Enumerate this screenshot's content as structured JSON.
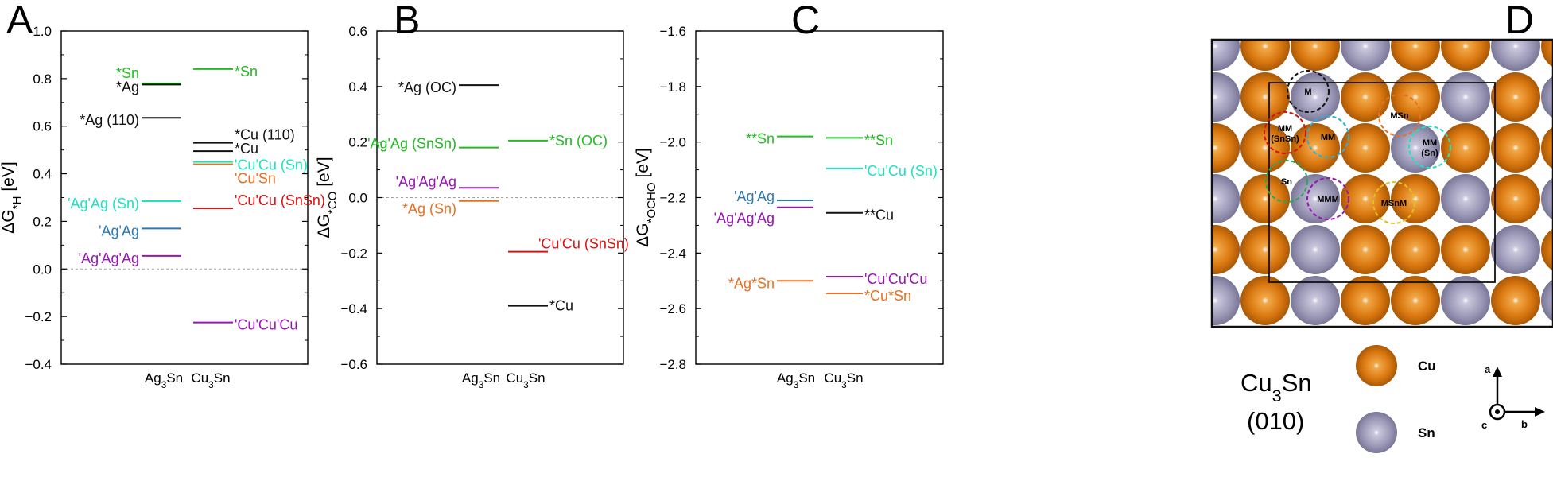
{
  "panels": [
    "A",
    "B",
    "C",
    "D"
  ],
  "chart_data": [
    {
      "type": "level_diagram",
      "title": "",
      "panel": "A",
      "ylabel": "ΔG*H [eV]",
      "ylim": [
        -0.4,
        1.0
      ],
      "yticks": [
        "-0.4",
        "-0.2",
        "0.0",
        "0.2",
        "0.4",
        "0.6",
        "0.8",
        "1.0"
      ],
      "categories": [
        "Ag3Sn",
        "Cu3Sn"
      ],
      "zero_line": true,
      "levels": [
        {
          "label": "*Sn",
          "value": 0.78,
          "category": 0,
          "color": "#22bb22"
        },
        {
          "label": "*Ag",
          "value": 0.775,
          "category": 0,
          "color": "#111111"
        },
        {
          "label": "*Ag (110)",
          "value": 0.635,
          "category": 0,
          "color": "#111111"
        },
        {
          "label": "'Ag'Ag (Sn)",
          "value": 0.285,
          "category": 0,
          "color": "#1de3c0"
        },
        {
          "label": "'Ag'Ag",
          "value": 0.17,
          "category": 0,
          "color": "#2e78b0"
        },
        {
          "label": "'Ag'Ag'Ag",
          "value": 0.055,
          "category": 0,
          "color": "#9a15b8"
        },
        {
          "label": "*Sn",
          "value": 0.84,
          "category": 1,
          "color": "#22bb22"
        },
        {
          "label": "*Cu (110)",
          "value": 0.53,
          "category": 1,
          "color": "#111111"
        },
        {
          "label": "*Cu",
          "value": 0.495,
          "category": 1,
          "color": "#111111"
        },
        {
          "label": "'Cu'Cu (Sn)",
          "value": 0.45,
          "category": 1,
          "color": "#1de3c0"
        },
        {
          "label": "'Cu'Sn",
          "value": 0.44,
          "category": 1,
          "color": "#e87020"
        },
        {
          "label": "'Cu'Cu (SnSn)",
          "value": 0.255,
          "category": 1,
          "color": "#dd1111"
        },
        {
          "label": "'Cu'Cu'Cu",
          "value": -0.225,
          "category": 1,
          "color": "#9a15b8"
        }
      ]
    },
    {
      "type": "level_diagram",
      "title": "",
      "panel": "B",
      "ylabel": "ΔG*CO [eV]",
      "ylim": [
        -0.6,
        0.6
      ],
      "yticks": [
        "-0.6",
        "-0.4",
        "-0.2",
        "0.0",
        "0.2",
        "0.4",
        "0.6"
      ],
      "categories": [
        "Ag3Sn",
        "Cu3Sn"
      ],
      "zero_line": true,
      "levels": [
        {
          "label": "*Ag (OC)",
          "value": 0.405,
          "category": 0,
          "color": "#111111"
        },
        {
          "label": "'Ag'Ag (SnSn)",
          "value": 0.18,
          "category": 0,
          "color": "#22bb22"
        },
        {
          "label": "'Ag'Ag'Ag",
          "value": 0.035,
          "category": 0,
          "color": "#9a15b8"
        },
        {
          "label": "*Ag (Sn)",
          "value": -0.012,
          "category": 0,
          "color": "#e87020"
        },
        {
          "label": "*Sn (OC)",
          "value": 0.205,
          "category": 1,
          "color": "#22bb22"
        },
        {
          "label": "'Cu'Cu (SnSn)",
          "value": -0.195,
          "category": 1,
          "color": "#dd1111"
        },
        {
          "label": "*Cu",
          "value": -0.39,
          "category": 1,
          "color": "#111111"
        }
      ]
    },
    {
      "type": "level_diagram",
      "title": "",
      "panel": "C",
      "ylabel": "ΔG*OCHO [eV]",
      "ylim": [
        -2.8,
        -1.6
      ],
      "yticks": [
        "-2.8",
        "-2.6",
        "-2.4",
        "-2.2",
        "-2.0",
        "-1.8",
        "-1.6"
      ],
      "categories": [
        "Ag3Sn",
        "Cu3Sn"
      ],
      "zero_line": false,
      "levels": [
        {
          "label": "**Sn",
          "value": -1.98,
          "category": 0,
          "color": "#22bb22"
        },
        {
          "label": "'Ag'Ag",
          "value": -2.21,
          "category": 0,
          "color": "#2e78b0"
        },
        {
          "label": "'Ag'Ag'Ag",
          "value": -2.235,
          "category": 0,
          "color": "#9a15b8"
        },
        {
          "label": "*Ag*Sn",
          "value": -2.5,
          "category": 0,
          "color": "#e87020"
        },
        {
          "label": "**Sn",
          "value": -1.985,
          "category": 1,
          "color": "#22bb22"
        },
        {
          "label": "'Cu'Cu (Sn)",
          "value": -2.095,
          "category": 1,
          "color": "#1de3c0"
        },
        {
          "label": "**Cu",
          "value": -2.255,
          "category": 1,
          "color": "#111111"
        },
        {
          "label": "'Cu'Cu'Cu",
          "value": -2.485,
          "category": 1,
          "color": "#9a15b8"
        },
        {
          "label": "*Cu*Sn",
          "value": -2.545,
          "category": 1,
          "color": "#e87020"
        }
      ]
    }
  ],
  "panel_d": {
    "structure_name": "Cu3Sn",
    "facet": "(010)",
    "legend": [
      {
        "label": "Cu",
        "color": "#d9770f"
      },
      {
        "label": "Sn",
        "color": "#9c99b8"
      }
    ],
    "sites": [
      {
        "label": "M",
        "color": "#111111"
      },
      {
        "label": "MSn",
        "color": "#e87020"
      },
      {
        "label": "MM (SnSn)",
        "color": "#dd1111"
      },
      {
        "label": "MM",
        "color": "#2ab0d8"
      },
      {
        "label": "MM (Sn)",
        "color": "#1de3c0"
      },
      {
        "label": "Sn",
        "color": "#22aa55"
      },
      {
        "label": "MMM",
        "color": "#9a15b8"
      },
      {
        "label": "MSnM",
        "color": "#e0c020"
      }
    ],
    "axes": [
      "a",
      "b",
      "c"
    ]
  }
}
